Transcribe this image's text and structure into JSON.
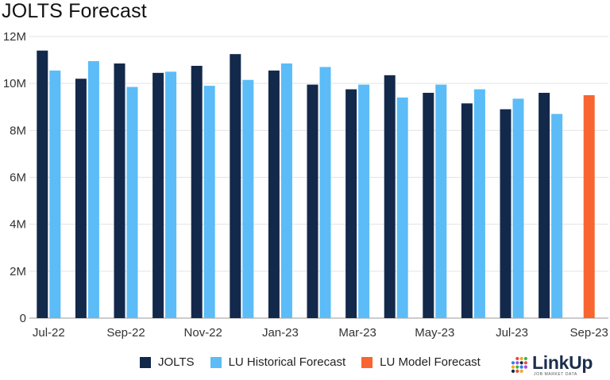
{
  "chart_data": {
    "type": "bar",
    "title": "JOLTS Forecast",
    "categories": [
      "Jul-22",
      "Aug-22",
      "Sep-22",
      "Oct-22",
      "Nov-22",
      "Dec-22",
      "Jan-23",
      "Feb-23",
      "Mar-23",
      "Apr-23",
      "May-23",
      "Jun-23",
      "Jul-23",
      "Aug-23",
      "Sep-23"
    ],
    "x_tick_labels": [
      "Jul-22",
      "Sep-22",
      "Nov-22",
      "Jan-23",
      "Mar-23",
      "May-23",
      "Jul-23",
      "Sep-23"
    ],
    "y_tick_labels": [
      "0",
      "2M",
      "4M",
      "6M",
      "8M",
      "10M",
      "12M"
    ],
    "ylim": [
      0,
      12000000
    ],
    "y_ticks": [
      0,
      2000000,
      4000000,
      6000000,
      8000000,
      10000000,
      12000000
    ],
    "xlabel": "",
    "ylabel": "",
    "grid": true,
    "legend_position": "bottom",
    "series": [
      {
        "name": "JOLTS",
        "color": "#13294b",
        "values": [
          11400000,
          10200000,
          10850000,
          10450000,
          10750000,
          11250000,
          10550000,
          9950000,
          9750000,
          10350000,
          9600000,
          9150000,
          8900000,
          9600000,
          null
        ]
      },
      {
        "name": "LU Historical Forecast",
        "color": "#5bbcf7",
        "values": [
          10550000,
          10950000,
          9850000,
          10500000,
          9900000,
          10150000,
          10850000,
          10700000,
          9950000,
          9400000,
          9950000,
          9750000,
          9350000,
          8700000,
          null
        ]
      },
      {
        "name": "LU Model Forecast",
        "color": "#f86530",
        "values": [
          null,
          null,
          null,
          null,
          null,
          null,
          null,
          null,
          null,
          null,
          null,
          null,
          null,
          null,
          9500000
        ]
      }
    ]
  },
  "logo": {
    "name": "LinkUp",
    "tagline": "JOB MARKET DATA",
    "colors": [
      "#e94e3c",
      "#f6a623",
      "#3fb34f",
      "#2f80ed",
      "#9b51e0",
      "#13294b"
    ]
  }
}
